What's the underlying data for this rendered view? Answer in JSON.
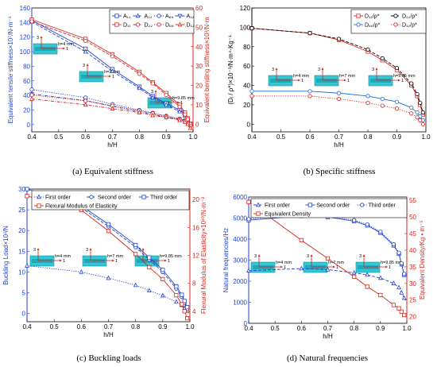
{
  "chart_data": [
    {
      "type": "line",
      "panel": "a",
      "caption": "(a) Equivalent stiffness",
      "xlabel": "h/H",
      "ylabel": "Equivalent tensile stiffness×10⁷/N·m⁻¹",
      "ylabel_color": "#1f3fd1",
      "ylabel2": "Equivalent bending stiffness×10³/N·m",
      "ylabel2_color": "#d9231b",
      "xlim": [
        0.4,
        1.0
      ],
      "ylim": [
        -10,
        160
      ],
      "ylim2": [
        -4,
        60
      ],
      "x_ticks": [
        0.4,
        0.5,
        0.6,
        0.7,
        0.8,
        0.9,
        1.0
      ],
      "x_tick_labels": [
        "0.4",
        "0.5",
        "0.6",
        "0.7",
        "0.8",
        "0.9",
        "1.0"
      ],
      "y_ticks": [
        0,
        20,
        40,
        60,
        80,
        100,
        120,
        140,
        160
      ],
      "y_tick_labels": [
        "0",
        "20",
        "40",
        "60",
        "80",
        "100",
        "120",
        "140",
        "160"
      ],
      "y2_ticks": [
        0,
        10,
        20,
        30,
        40,
        50,
        60
      ],
      "y2_tick_labels": [
        "0",
        "10",
        "20",
        "30",
        "40",
        "50",
        "60"
      ],
      "legend": "top-right",
      "legend_cols": 4,
      "series": [
        {
          "name": "A₁₁",
          "axis": "left",
          "color": "#1f3fd1",
          "dash": "solid",
          "marker": "square",
          "x": [
            0.4,
            0.6,
            0.7,
            0.8,
            0.85,
            0.9,
            0.95,
            0.97,
            0.98,
            0.99
          ],
          "y": [
            143,
            104,
            76,
            52,
            39,
            29,
            20,
            14,
            7,
            1
          ]
        },
        {
          "name": "A₂₂",
          "axis": "left",
          "color": "#1f3fd1",
          "dash": "dashed",
          "marker": "triangle-up",
          "x": [
            0.4,
            0.6,
            0.7,
            0.8,
            0.85,
            0.9,
            0.95,
            0.97,
            0.98,
            0.99
          ],
          "y": [
            141,
            100,
            73,
            50,
            37,
            27,
            18,
            12,
            6,
            0
          ]
        },
        {
          "name": "A₆₆",
          "axis": "left",
          "color": "#1f3fd1",
          "dash": "dotted",
          "marker": "circle",
          "x": [
            0.4,
            0.6,
            0.7,
            0.8,
            0.85,
            0.9,
            0.95,
            0.97,
            0.98,
            0.99
          ],
          "y": [
            48,
            37,
            28,
            20,
            16,
            12,
            8,
            6,
            3,
            0
          ]
        },
        {
          "name": "A₁₂",
          "axis": "left",
          "color": "#1f3fd1",
          "dash": "dashdot",
          "marker": "triangle-down",
          "x": [
            0.4,
            0.6,
            0.7,
            0.8,
            0.85,
            0.9,
            0.95,
            0.97,
            0.98,
            0.99
          ],
          "y": [
            42,
            33,
            25,
            18,
            14,
            10,
            7,
            5,
            2,
            0
          ]
        },
        {
          "name": "D₁₁",
          "axis": "right",
          "color": "#d9231b",
          "dash": "solid",
          "marker": "square",
          "x": [
            0.4,
            0.6,
            0.7,
            0.8,
            0.85,
            0.9,
            0.95,
            0.97,
            0.98,
            0.99
          ],
          "y": [
            54,
            44,
            36,
            27,
            21.5,
            16,
            10,
            6,
            3,
            0
          ]
        },
        {
          "name": "D₂₂",
          "axis": "right",
          "color": "#d9231b",
          "dash": "dashed",
          "marker": "circle",
          "x": [
            0.4,
            0.6,
            0.7,
            0.8,
            0.85,
            0.9,
            0.95,
            0.97,
            0.98,
            0.99
          ],
          "y": [
            53,
            43,
            35,
            26,
            21,
            15,
            9,
            5,
            2.5,
            0
          ]
        },
        {
          "name": "D₆₆",
          "axis": "right",
          "color": "#d9231b",
          "dash": "dotted",
          "marker": "circle",
          "x": [
            0.4,
            0.6,
            0.7,
            0.8,
            0.85,
            0.9,
            0.95,
            0.97,
            0.98,
            0.99
          ],
          "y": [
            15,
            12,
            9.5,
            7,
            5.5,
            4,
            2.5,
            1.5,
            0.5,
            -1
          ]
        },
        {
          "name": "D₁₂",
          "axis": "right",
          "color": "#d9231b",
          "dash": "dashdot",
          "marker": "triangle-up",
          "x": [
            0.4,
            0.6,
            0.7,
            0.8,
            0.85,
            0.9,
            0.95,
            0.97,
            0.98,
            0.99
          ],
          "y": [
            13,
            10,
            8,
            6,
            4.5,
            3.5,
            2,
            1,
            0,
            -2
          ]
        }
      ],
      "annotations": [
        "h=4 mm",
        "h=7 mm",
        "h=9.85 mm",
        "3",
        "1"
      ]
    },
    {
      "type": "line",
      "panel": "b",
      "caption": "(b) Specific stiffness",
      "xlabel": "h/H",
      "ylabel": "(Dᵢ / ρ*)×10⁻³/N·m⁴·Kg⁻¹",
      "ylabel_color": "#000000",
      "xlim": [
        0.4,
        1.0
      ],
      "ylim": [
        -8,
        120
      ],
      "x_ticks": [
        0.4,
        0.5,
        0.6,
        0.7,
        0.8,
        0.9,
        1.0
      ],
      "x_tick_labels": [
        "0.4",
        "0.5",
        "0.6",
        "0.7",
        "0.8",
        "0.9",
        "1.0"
      ],
      "y_ticks": [
        0,
        20,
        40,
        60,
        80,
        100,
        120
      ],
      "y_tick_labels": [
        "0",
        "20",
        "40",
        "60",
        "80",
        "100",
        "120"
      ],
      "legend": "top-right",
      "legend_cols": 2,
      "series": [
        {
          "name": "D₁₁/ρ*",
          "color": "#d9231b",
          "dash": "solid",
          "marker": "square",
          "x": [
            0.4,
            0.6,
            0.7,
            0.8,
            0.85,
            0.9,
            0.95,
            0.97,
            0.98,
            0.99
          ],
          "y": [
            99,
            94,
            87,
            75,
            66,
            56,
            40,
            29,
            20,
            10
          ]
        },
        {
          "name": "D₂₂/ρ*",
          "color": "#000000",
          "dash": "dashed",
          "marker": "circle",
          "x": [
            0.4,
            0.6,
            0.7,
            0.8,
            0.85,
            0.9,
            0.95,
            0.97,
            0.98,
            0.99
          ],
          "y": [
            99,
            94,
            88,
            77,
            68,
            58,
            42,
            31,
            22,
            12
          ]
        },
        {
          "name": "D₆₆/ρ*",
          "color": "#1f6fd1",
          "dash": "solid",
          "marker": "circle",
          "x": [
            0.4,
            0.6,
            0.7,
            0.8,
            0.85,
            0.9,
            0.95,
            0.97,
            0.98,
            0.99
          ],
          "y": [
            34,
            34,
            32,
            29,
            26,
            23,
            17,
            12,
            8,
            4
          ]
        },
        {
          "name": "D₁₂/ρ*",
          "color": "#d9231b",
          "dash": "dotted",
          "marker": "circle",
          "x": [
            0.4,
            0.6,
            0.7,
            0.8,
            0.85,
            0.9,
            0.95,
            0.97,
            0.98,
            0.99
          ],
          "y": [
            29,
            29,
            26,
            22,
            19,
            16,
            11,
            7,
            4,
            0
          ]
        }
      ],
      "annotations": [
        "h=4 mm",
        "h=7 mm",
        "h=9.85 mm",
        "3",
        "1"
      ]
    },
    {
      "type": "line",
      "panel": "c",
      "caption": "(c) Buckling loads",
      "xlabel": "h/H",
      "ylabel": "Buckling Load×10³/N",
      "ylabel_color": "#1f3fd1",
      "ylabel2": "Flexural Modulus of Elasticity×10¹⁰/N·m⁻²",
      "ylabel2_color": "#d9231b",
      "xlim": [
        0.4,
        1.0
      ],
      "ylim": [
        -2,
        30
      ],
      "ylim2": [
        2.5,
        21.5
      ],
      "x_ticks": [
        0.4,
        0.5,
        0.6,
        0.7,
        0.8,
        0.9,
        1.0
      ],
      "x_tick_labels": [
        "0.4",
        "0.5",
        "0.6",
        "0.7",
        "0.8",
        "0.9",
        "1.0"
      ],
      "y_ticks": [
        0,
        5,
        10,
        15,
        20,
        25,
        30
      ],
      "y_tick_labels": [
        "0",
        "5",
        "10",
        "15",
        "20",
        "25",
        "30"
      ],
      "y2_ticks": [
        4,
        8,
        12,
        16,
        20
      ],
      "y2_tick_labels": [
        "4",
        "8",
        "12",
        "16",
        "20"
      ],
      "legend": "top-right",
      "legend_cols": 3,
      "series": [
        {
          "name": "First order",
          "axis": "left",
          "color": "#1f3fd1",
          "dash": "dotted",
          "marker": "triangle-up",
          "x": [
            0.4,
            0.6,
            0.7,
            0.8,
            0.85,
            0.9,
            0.95,
            0.97,
            0.98,
            0.99
          ],
          "y": [
            11.5,
            10,
            8.5,
            6.8,
            5.5,
            4.3,
            2.8,
            2,
            1.2,
            0.5
          ]
        },
        {
          "name": "Second order",
          "axis": "left",
          "color": "#1f3fd1",
          "dash": "dashed",
          "marker": "circle",
          "x": [
            0.4,
            0.6,
            0.7,
            0.8,
            0.85,
            0.9,
            0.95,
            0.97,
            0.98,
            0.99
          ],
          "y": [
            30,
            25.5,
            21,
            16,
            13,
            10,
            6,
            4,
            2.5,
            1
          ]
        },
        {
          "name": "Third order",
          "axis": "left",
          "color": "#1f3fd1",
          "dash": "solid",
          "marker": "square",
          "x": [
            0.4,
            0.6,
            0.7,
            0.8,
            0.85,
            0.9,
            0.95,
            0.97,
            0.98,
            0.99
          ],
          "y": [
            30,
            26,
            21.5,
            16.5,
            13.5,
            10.5,
            6.5,
            4.5,
            3,
            1.5
          ]
        },
        {
          "name": "Flexural Modulus of Elasticity",
          "axis": "right",
          "color": "#d9231b",
          "dash": "solid",
          "marker": "square",
          "x": [
            0.4,
            0.6,
            0.7,
            0.8,
            0.85,
            0.9,
            0.95,
            0.97,
            0.98,
            0.99
          ],
          "y": [
            20.5,
            18.5,
            15.5,
            12.2,
            10.3,
            8.6,
            6.3,
            5,
            4,
            3
          ]
        }
      ],
      "annotations": [
        "h=4 mm",
        "h=7 mm",
        "h=9.85 mm",
        "3",
        "1"
      ]
    },
    {
      "type": "line",
      "panel": "d",
      "caption": "(d) Natural frequencies",
      "xlabel": "h/H",
      "ylabel": "Natural frequencies/Hz",
      "ylabel_color": "#1f3fd1",
      "ylabel2": "Equivalent Density/Kg • m⁻³",
      "ylabel2_color": "#d9231b",
      "xlim": [
        0.4,
        1.0
      ],
      "ylim": [
        0,
        6000
      ],
      "ylim2": [
        18,
        56
      ],
      "x_ticks": [
        0.4,
        0.5,
        0.6,
        0.7,
        0.8,
        0.9,
        1.0
      ],
      "x_tick_labels": [
        "0.4",
        "0.5",
        "0.6",
        "0.7",
        "0.8",
        "0.9",
        "1.0"
      ],
      "y_ticks": [
        0,
        1000,
        2000,
        3000,
        4000,
        5000,
        6000
      ],
      "y_tick_labels": [
        "0",
        "1000",
        "2000",
        "3000",
        "4000",
        "5000",
        "6000"
      ],
      "y2_ticks": [
        20,
        25,
        30,
        35,
        40,
        45,
        50,
        55
      ],
      "y2_tick_labels": [
        "20",
        "25",
        "30",
        "35",
        "40",
        "45",
        "50",
        "55"
      ],
      "legend": "top-right",
      "legend_cols": 3,
      "series": [
        {
          "name": "First order",
          "axis": "left",
          "color": "#1f3fd1",
          "dash": "dashed",
          "marker": "triangle-up",
          "x": [
            0.4,
            0.6,
            0.7,
            0.8,
            0.85,
            0.9,
            0.95,
            0.97,
            0.98,
            0.99
          ],
          "y": [
            2500,
            2600,
            2550,
            2400,
            2300,
            2150,
            1900,
            1700,
            1450,
            1200
          ]
        },
        {
          "name": "Second order",
          "axis": "left",
          "color": "#1f3fd1",
          "dash": "solid",
          "marker": "square",
          "x": [
            0.4,
            0.6,
            0.7,
            0.8,
            0.85,
            0.9,
            0.95,
            0.97,
            0.98,
            0.99
          ],
          "y": [
            4900,
            5100,
            5050,
            4850,
            4650,
            4300,
            3700,
            3300,
            2800,
            2300
          ]
        },
        {
          "name": "Third order",
          "axis": "left",
          "color": "#1f3fd1",
          "dash": "dotted",
          "marker": "circle",
          "x": [
            0.4,
            0.6,
            0.7,
            0.8,
            0.85,
            0.9,
            0.95,
            0.97,
            0.98,
            0.99
          ],
          "y": [
            4950,
            5200,
            5100,
            4900,
            4700,
            4350,
            3750,
            3350,
            2850,
            2350
          ]
        },
        {
          "name": "Equivalent Density",
          "axis": "right",
          "color": "#d9231b",
          "dash": "solid",
          "marker": "square",
          "x": [
            0.4,
            0.6,
            0.7,
            0.8,
            0.85,
            0.9,
            0.95,
            0.97,
            0.98,
            0.99
          ],
          "y": [
            54.5,
            43,
            37.5,
            32,
            29,
            26.5,
            23.5,
            22.5,
            21.5,
            20.5
          ]
        }
      ],
      "annotations": [
        "h=4 mm",
        "h=7 mm",
        "h=9.85 mm",
        "3",
        "1"
      ]
    }
  ]
}
